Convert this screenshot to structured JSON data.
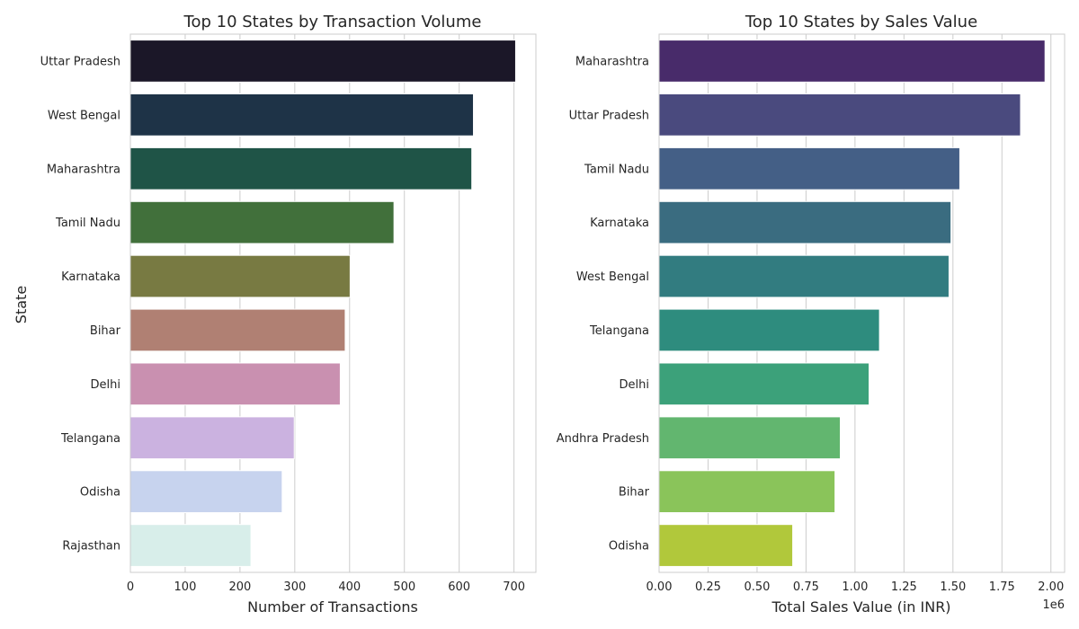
{
  "chart_data": [
    {
      "type": "bar",
      "orientation": "horizontal",
      "title": "Top 10 States by Transaction Volume",
      "xlabel": "Number of Transactions",
      "ylabel": "State",
      "categories": [
        "Uttar Pradesh",
        "West Bengal",
        "Maharashtra",
        "Tamil Nadu",
        "Karnataka",
        "Bihar",
        "Delhi",
        "Telangana",
        "Odisha",
        "Rajasthan"
      ],
      "values": [
        703,
        626,
        623,
        481,
        401,
        392,
        383,
        299,
        277,
        220
      ],
      "xlim": [
        0,
        740
      ],
      "xticks": [
        0,
        100,
        200,
        300,
        400,
        500,
        600,
        700
      ],
      "xtick_labels": [
        "0",
        "100",
        "200",
        "300",
        "400",
        "500",
        "600",
        "700"
      ],
      "offset_text": "",
      "grid": true,
      "colors": [
        "#1b1728",
        "#1e3347",
        "#1f5447",
        "#41703b",
        "#787a42",
        "#b08073",
        "#c990b0",
        "#cbb2e0",
        "#c7d3ee",
        "#d8eeea"
      ]
    },
    {
      "type": "bar",
      "orientation": "horizontal",
      "title": "Top 10 States by Sales Value",
      "xlabel": "Total Sales Value (in INR)",
      "ylabel": "",
      "categories": [
        "Maharashtra",
        "Uttar Pradesh",
        "Tamil Nadu",
        "Karnataka",
        "West Bengal",
        "Telangana",
        "Delhi",
        "Andhra Pradesh",
        "Bihar",
        "Odisha"
      ],
      "values": [
        1970000,
        1845000,
        1535000,
        1490000,
        1480000,
        1125000,
        1072000,
        925000,
        898000,
        682000
      ],
      "xlim": [
        0,
        2070000
      ],
      "xticks": [
        0,
        250000,
        500000,
        750000,
        1000000,
        1250000,
        1500000,
        1750000,
        2000000
      ],
      "xtick_labels": [
        "0.00",
        "0.25",
        "0.50",
        "0.75",
        "1.00",
        "1.25",
        "1.50",
        "1.75",
        "2.00"
      ],
      "offset_text": "1e6",
      "grid": true,
      "colors": [
        "#482b6a",
        "#4a4a7e",
        "#445f86",
        "#3a6c80",
        "#327c80",
        "#2e8c7e",
        "#3ca17a",
        "#62b66f",
        "#8ac45a",
        "#b1c83b"
      ]
    }
  ]
}
